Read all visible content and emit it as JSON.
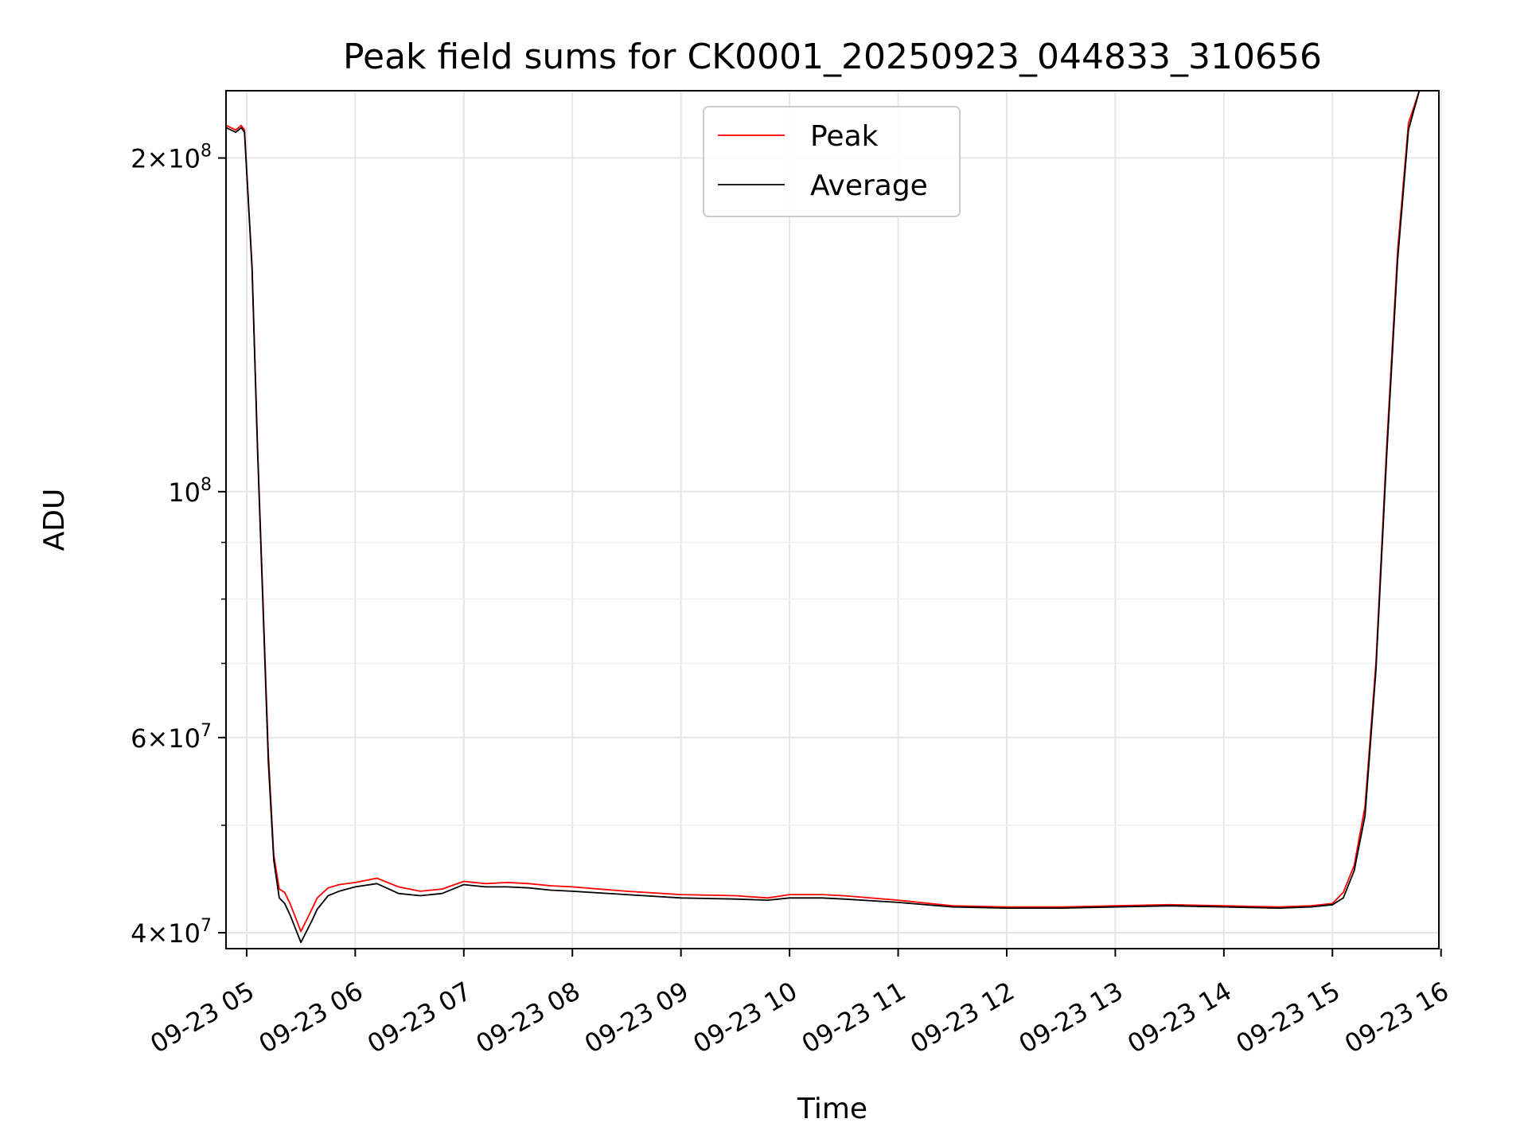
{
  "chart_data": {
    "type": "line",
    "title": "Peak field sums for CK0001_20250923_044833_310656",
    "xlabel": "Time",
    "ylabel": "ADU",
    "yscale": "log",
    "grid": true,
    "legend_position": "upper-center",
    "xlim": [
      4.81,
      15.98
    ],
    "ylim": [
      38700000,
      230000000
    ],
    "x_unit": "hours since 2025-09-23 00:00",
    "x_ticks": [
      {
        "value": 5,
        "label": "09-23 05"
      },
      {
        "value": 6,
        "label": "09-23 06"
      },
      {
        "value": 7,
        "label": "09-23 07"
      },
      {
        "value": 8,
        "label": "09-23 08"
      },
      {
        "value": 9,
        "label": "09-23 09"
      },
      {
        "value": 10,
        "label": "09-23 10"
      },
      {
        "value": 11,
        "label": "09-23 11"
      },
      {
        "value": 12,
        "label": "09-23 12"
      },
      {
        "value": 13,
        "label": "09-23 13"
      },
      {
        "value": 14,
        "label": "09-23 14"
      },
      {
        "value": 15,
        "label": "09-23 15"
      },
      {
        "value": 16,
        "label": "09-23 16"
      }
    ],
    "y_major_ticks": [
      {
        "value": 40000000,
        "mantissa": "4",
        "exp": "7"
      },
      {
        "value": 60000000,
        "mantissa": "6",
        "exp": "7"
      },
      {
        "value": 100000000,
        "mantissa": "",
        "exp": "8"
      },
      {
        "value": 200000000,
        "mantissa": "2",
        "exp": "8"
      }
    ],
    "y_minor_ticks": [
      50000000,
      70000000,
      80000000,
      90000000
    ],
    "series": [
      {
        "name": "Peak",
        "color": "#ff0000",
        "x": [
          4.81,
          4.9,
          4.95,
          4.98,
          5.05,
          5.1,
          5.15,
          5.2,
          5.25,
          5.3,
          5.35,
          5.4,
          5.5,
          5.6,
          5.65,
          5.75,
          5.85,
          6.0,
          6.2,
          6.4,
          6.6,
          6.8,
          7.0,
          7.2,
          7.4,
          7.6,
          7.8,
          8.0,
          8.5,
          9.0,
          9.5,
          9.8,
          10.0,
          10.3,
          10.5,
          11.0,
          11.5,
          12.0,
          12.5,
          13.0,
          13.5,
          14.0,
          14.5,
          14.8,
          15.0,
          15.1,
          15.2,
          15.3,
          15.4,
          15.5,
          15.6,
          15.7,
          15.8,
          15.98
        ],
        "y": [
          214000000,
          212000000,
          214000000,
          212000000,
          160000000,
          110000000,
          80000000,
          58000000,
          47000000,
          43800000,
          43500000,
          42500000,
          40100000,
          42000000,
          43000000,
          43900000,
          44200000,
          44400000,
          44800000,
          44000000,
          43600000,
          43800000,
          44500000,
          44300000,
          44400000,
          44300000,
          44100000,
          44000000,
          43600000,
          43300000,
          43200000,
          43000000,
          43300000,
          43300000,
          43200000,
          42800000,
          42300000,
          42200000,
          42200000,
          42300000,
          42400000,
          42300000,
          42200000,
          42300000,
          42500000,
          43500000,
          46000000,
          52000000,
          70000000,
          110000000,
          165000000,
          215000000,
          230000000,
          230000000
        ]
      },
      {
        "name": "Average",
        "color": "#000000",
        "x": [
          4.81,
          4.9,
          4.95,
          4.98,
          5.05,
          5.1,
          5.15,
          5.2,
          5.25,
          5.3,
          5.35,
          5.4,
          5.5,
          5.6,
          5.65,
          5.75,
          5.85,
          6.0,
          6.2,
          6.4,
          6.6,
          6.8,
          7.0,
          7.2,
          7.4,
          7.6,
          7.8,
          8.0,
          8.5,
          9.0,
          9.5,
          9.8,
          10.0,
          10.3,
          10.5,
          11.0,
          11.5,
          12.0,
          12.5,
          13.0,
          13.5,
          14.0,
          14.5,
          14.8,
          15.0,
          15.1,
          15.2,
          15.3,
          15.4,
          15.5,
          15.6,
          15.7,
          15.8,
          15.98
        ],
        "y": [
          213000000,
          211000000,
          213000000,
          211000000,
          159000000,
          109000000,
          79000000,
          57000000,
          46500000,
          43000000,
          42500000,
          41500000,
          39200000,
          41000000,
          42000000,
          43200000,
          43600000,
          44000000,
          44300000,
          43400000,
          43200000,
          43400000,
          44200000,
          44000000,
          44000000,
          43900000,
          43700000,
          43600000,
          43300000,
          43000000,
          42900000,
          42800000,
          43000000,
          43000000,
          42900000,
          42600000,
          42200000,
          42100000,
          42100000,
          42200000,
          42300000,
          42200000,
          42100000,
          42200000,
          42400000,
          43000000,
          45500000,
          51000000,
          69000000,
          108000000,
          162000000,
          212000000,
          230000000,
          230000000
        ]
      }
    ]
  }
}
